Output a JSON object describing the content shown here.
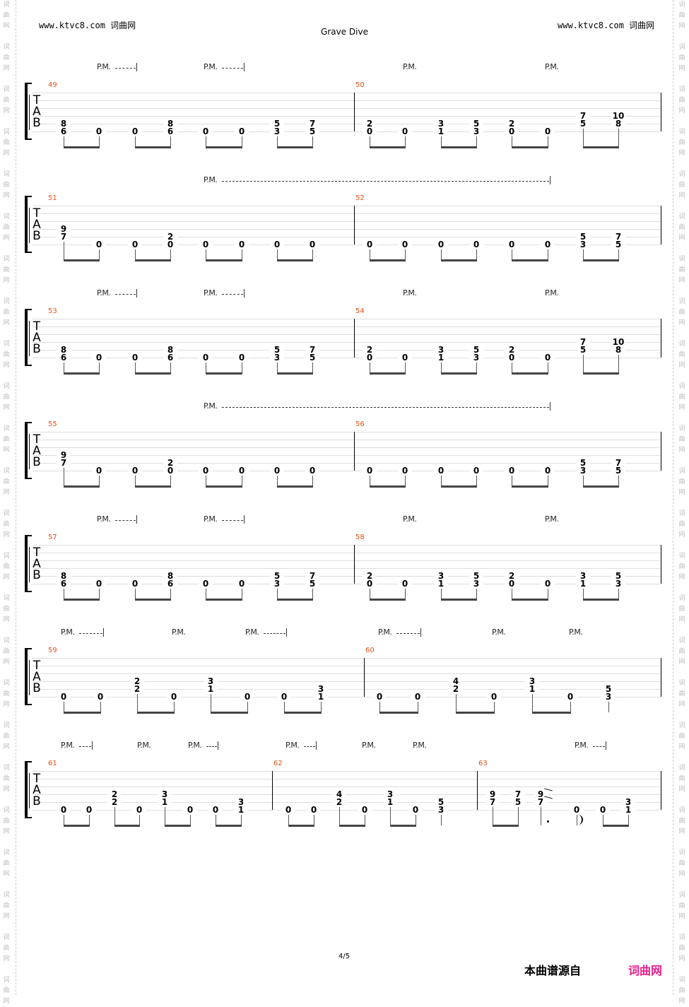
{
  "header": {
    "site_left": "www.ktvc8.com 词曲网",
    "site_right": "www.ktvc8.com 词曲网",
    "title": "Grave Dive"
  },
  "watermark": "词曲网",
  "tab_letters": [
    "T",
    "A",
    "B"
  ],
  "systems": [
    {
      "measures": [
        {
          "number": "49",
          "notes": [
            [
              [
                5,
                "8"
              ],
              [
                6,
                "6"
              ]
            ],
            [
              [
                6,
                "0"
              ]
            ],
            [
              [
                6,
                "0"
              ]
            ],
            [
              [
                5,
                "8"
              ],
              [
                6,
                "6"
              ]
            ],
            [
              [
                6,
                "0"
              ]
            ],
            [
              [
                6,
                "0"
              ]
            ],
            [
              [
                5,
                "5"
              ],
              [
                6,
                "3"
              ]
            ],
            [
              [
                5,
                "7"
              ],
              [
                6,
                "5"
              ]
            ]
          ]
        },
        {
          "number": "50",
          "notes": [
            [
              [
                5,
                "2"
              ],
              [
                6,
                "0"
              ]
            ],
            [
              [
                6,
                "0"
              ]
            ],
            [
              [
                5,
                "3"
              ],
              [
                6,
                "1"
              ]
            ],
            [
              [
                5,
                "5"
              ],
              [
                6,
                "3"
              ]
            ],
            [
              [
                5,
                "2"
              ],
              [
                6,
                "0"
              ]
            ],
            [
              [
                6,
                "0"
              ]
            ],
            [
              [
                4,
                "7"
              ],
              [
                5,
                "5"
              ]
            ],
            [
              [
                4,
                "10"
              ],
              [
                5,
                "8"
              ]
            ]
          ]
        }
      ],
      "pm": [
        {
          "label": "P.M.",
          "dashed": true
        },
        {
          "label": "P.M.",
          "dashed": true
        },
        {
          "label": "P.M.",
          "dashed": false
        },
        {
          "label": "P.M.",
          "dashed": false
        }
      ]
    },
    {
      "measures": [
        {
          "number": "51",
          "notes": [
            [
              [
                4,
                "9"
              ],
              [
                5,
                "7"
              ]
            ],
            [
              [
                6,
                "0"
              ]
            ],
            [
              [
                6,
                "0"
              ]
            ],
            [
              [
                5,
                "2"
              ],
              [
                6,
                "0"
              ]
            ],
            [
              [
                6,
                "0"
              ]
            ],
            [
              [
                6,
                "0"
              ]
            ],
            [
              [
                6,
                "0"
              ]
            ],
            [
              [
                6,
                "0"
              ]
            ]
          ]
        },
        {
          "number": "52",
          "notes": [
            [
              [
                6,
                "0"
              ]
            ],
            [
              [
                6,
                "0"
              ]
            ],
            [
              [
                6,
                "0"
              ]
            ],
            [
              [
                6,
                "0"
              ]
            ],
            [
              [
                6,
                "0"
              ]
            ],
            [
              [
                6,
                "0"
              ]
            ],
            [
              [
                5,
                "5"
              ],
              [
                6,
                "3"
              ]
            ],
            [
              [
                5,
                "7"
              ],
              [
                6,
                "5"
              ]
            ]
          ]
        }
      ],
      "pm": [
        {
          "label": "P.M.",
          "dashed": true
        }
      ]
    },
    {
      "measures": [
        {
          "number": "53",
          "notes": [
            [
              [
                5,
                "8"
              ],
              [
                6,
                "6"
              ]
            ],
            [
              [
                6,
                "0"
              ]
            ],
            [
              [
                6,
                "0"
              ]
            ],
            [
              [
                5,
                "8"
              ],
              [
                6,
                "6"
              ]
            ],
            [
              [
                6,
                "0"
              ]
            ],
            [
              [
                6,
                "0"
              ]
            ],
            [
              [
                5,
                "5"
              ],
              [
                6,
                "3"
              ]
            ],
            [
              [
                5,
                "7"
              ],
              [
                6,
                "5"
              ]
            ]
          ]
        },
        {
          "number": "54",
          "notes": [
            [
              [
                5,
                "2"
              ],
              [
                6,
                "0"
              ]
            ],
            [
              [
                6,
                "0"
              ]
            ],
            [
              [
                5,
                "3"
              ],
              [
                6,
                "1"
              ]
            ],
            [
              [
                5,
                "5"
              ],
              [
                6,
                "3"
              ]
            ],
            [
              [
                5,
                "2"
              ],
              [
                6,
                "0"
              ]
            ],
            [
              [
                6,
                "0"
              ]
            ],
            [
              [
                4,
                "7"
              ],
              [
                5,
                "5"
              ]
            ],
            [
              [
                4,
                "10"
              ],
              [
                5,
                "8"
              ]
            ]
          ]
        }
      ],
      "pm": [
        {
          "label": "P.M.",
          "dashed": true
        },
        {
          "label": "P.M.",
          "dashed": true
        },
        {
          "label": "P.M.",
          "dashed": false
        },
        {
          "label": "P.M.",
          "dashed": false
        }
      ]
    },
    {
      "measures": [
        {
          "number": "55",
          "notes": [
            [
              [
                4,
                "9"
              ],
              [
                5,
                "7"
              ]
            ],
            [
              [
                6,
                "0"
              ]
            ],
            [
              [
                6,
                "0"
              ]
            ],
            [
              [
                5,
                "2"
              ],
              [
                6,
                "0"
              ]
            ],
            [
              [
                6,
                "0"
              ]
            ],
            [
              [
                6,
                "0"
              ]
            ],
            [
              [
                6,
                "0"
              ]
            ],
            [
              [
                6,
                "0"
              ]
            ]
          ]
        },
        {
          "number": "56",
          "notes": [
            [
              [
                6,
                "0"
              ]
            ],
            [
              [
                6,
                "0"
              ]
            ],
            [
              [
                6,
                "0"
              ]
            ],
            [
              [
                6,
                "0"
              ]
            ],
            [
              [
                6,
                "0"
              ]
            ],
            [
              [
                6,
                "0"
              ]
            ],
            [
              [
                5,
                "5"
              ],
              [
                6,
                "3"
              ]
            ],
            [
              [
                5,
                "7"
              ],
              [
                6,
                "5"
              ]
            ]
          ]
        }
      ],
      "pm": [
        {
          "label": "P.M.",
          "dashed": true
        }
      ]
    },
    {
      "measures": [
        {
          "number": "57",
          "notes": [
            [
              [
                5,
                "8"
              ],
              [
                6,
                "6"
              ]
            ],
            [
              [
                6,
                "0"
              ]
            ],
            [
              [
                6,
                "0"
              ]
            ],
            [
              [
                5,
                "8"
              ],
              [
                6,
                "6"
              ]
            ],
            [
              [
                6,
                "0"
              ]
            ],
            [
              [
                6,
                "0"
              ]
            ],
            [
              [
                5,
                "5"
              ],
              [
                6,
                "3"
              ]
            ],
            [
              [
                5,
                "7"
              ],
              [
                6,
                "5"
              ]
            ]
          ]
        },
        {
          "number": "58",
          "notes": [
            [
              [
                5,
                "2"
              ],
              [
                6,
                "0"
              ]
            ],
            [
              [
                6,
                "0"
              ]
            ],
            [
              [
                5,
                "3"
              ],
              [
                6,
                "1"
              ]
            ],
            [
              [
                5,
                "5"
              ],
              [
                6,
                "3"
              ]
            ],
            [
              [
                5,
                "2"
              ],
              [
                6,
                "0"
              ]
            ],
            [
              [
                6,
                "0"
              ]
            ],
            [
              [
                5,
                "3"
              ],
              [
                6,
                "1"
              ]
            ],
            [
              [
                5,
                "5"
              ],
              [
                6,
                "3"
              ]
            ]
          ]
        }
      ],
      "pm": [
        {
          "label": "P.M.",
          "dashed": true
        },
        {
          "label": "P.M.",
          "dashed": true
        },
        {
          "label": "P.M.",
          "dashed": false
        },
        {
          "label": "P.M.",
          "dashed": false
        }
      ]
    },
    {
      "measures": [
        {
          "number": "59",
          "notes": [
            [
              [
                6,
                "0"
              ]
            ],
            [
              [
                6,
                "0"
              ]
            ],
            [
              [
                4,
                "2"
              ],
              [
                5,
                "2"
              ]
            ],
            [
              [
                6,
                "0"
              ]
            ],
            [
              [
                4,
                "3"
              ],
              [
                5,
                "1"
              ]
            ],
            [
              [
                6,
                "0"
              ]
            ],
            [
              [
                6,
                "0"
              ]
            ],
            [
              [
                5,
                "3"
              ],
              [
                6,
                "1"
              ]
            ]
          ]
        },
        {
          "number": "60",
          "notes": [
            [
              [
                6,
                "0"
              ]
            ],
            [
              [
                6,
                "0"
              ]
            ],
            [
              [
                4,
                "4"
              ],
              [
                5,
                "2"
              ]
            ],
            [
              [
                6,
                "0"
              ]
            ],
            [
              [
                4,
                "3"
              ],
              [
                5,
                "1"
              ]
            ],
            [
              [
                6,
                "0"
              ]
            ],
            [
              [
                5,
                "5"
              ],
              [
                6,
                "3"
              ]
            ]
          ]
        }
      ],
      "pm": [
        {
          "label": "P.M.",
          "dashed": true
        },
        {
          "label": "P.M.",
          "dashed": false
        },
        {
          "label": "P.M.",
          "dashed": true
        },
        {
          "label": "P.M.",
          "dashed": true
        },
        {
          "label": "P.M.",
          "dashed": false
        },
        {
          "label": "P.M.",
          "dashed": false
        }
      ]
    },
    {
      "measures": [
        {
          "number": "61",
          "notes": [
            [
              [
                6,
                "0"
              ]
            ],
            [
              [
                6,
                "0"
              ]
            ],
            [
              [
                4,
                "2"
              ],
              [
                5,
                "2"
              ]
            ],
            [
              [
                6,
                "0"
              ]
            ],
            [
              [
                4,
                "3"
              ],
              [
                5,
                "1"
              ]
            ],
            [
              [
                6,
                "0"
              ]
            ],
            [
              [
                6,
                "0"
              ]
            ],
            [
              [
                5,
                "3"
              ],
              [
                6,
                "1"
              ]
            ]
          ]
        },
        {
          "number": "62",
          "notes": [
            [
              [
                6,
                "0"
              ]
            ],
            [
              [
                6,
                "0"
              ]
            ],
            [
              [
                4,
                "4"
              ],
              [
                5,
                "2"
              ]
            ],
            [
              [
                6,
                "0"
              ]
            ],
            [
              [
                4,
                "3"
              ],
              [
                5,
                "1"
              ]
            ],
            [
              [
                6,
                "0"
              ]
            ],
            [
              [
                5,
                "5"
              ],
              [
                6,
                "3"
              ]
            ]
          ]
        },
        {
          "number": "63",
          "notes": [
            [
              [
                4,
                "9"
              ],
              [
                5,
                "7"
              ]
            ],
            [
              [
                4,
                "7"
              ],
              [
                5,
                "5"
              ]
            ],
            [
              [
                4,
                "9"
              ],
              [
                5,
                "7"
              ]
            ],
            [
              [
                6,
                "0"
              ]
            ],
            [
              [
                6,
                "0"
              ]
            ],
            [
              [
                5,
                "3"
              ],
              [
                6,
                "1"
              ]
            ]
          ]
        }
      ],
      "pm": [
        {
          "label": "P.M.",
          "dashed": true
        },
        {
          "label": "P.M.",
          "dashed": false
        },
        {
          "label": "P.M.",
          "dashed": true
        },
        {
          "label": "P.M.",
          "dashed": true
        },
        {
          "label": "P.M.",
          "dashed": false
        },
        {
          "label": "P.M.",
          "dashed": false
        },
        {
          "label": "P.M.",
          "dashed": true
        }
      ]
    }
  ],
  "footer": {
    "page": "4/5",
    "source_label": "本曲谱源自",
    "source_site": "词曲网",
    "source_color": "#e8208c"
  }
}
